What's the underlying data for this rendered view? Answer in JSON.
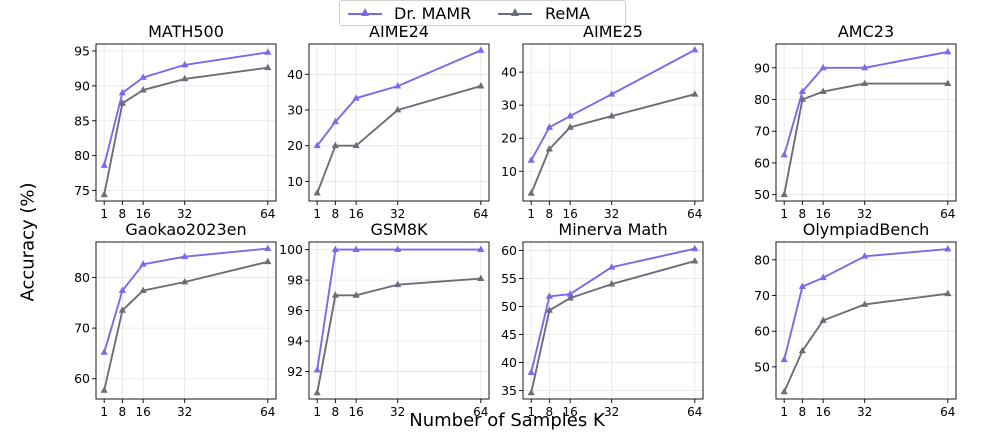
{
  "figure": {
    "ylabel": "Accuracy (%)",
    "xlabel": "Number of Samples K"
  },
  "legend": [
    {
      "name": "Dr. MAMR",
      "color": "#7b68ee"
    },
    {
      "name": "ReMA",
      "color": "#696e78"
    }
  ],
  "chart_data": [
    {
      "type": "line",
      "title": "MATH500",
      "x": [
        1,
        8,
        16,
        32,
        64
      ],
      "xticks": [
        1,
        8,
        16,
        32,
        64
      ],
      "yticks": [
        75,
        80,
        85,
        90,
        95
      ],
      "ylim": [
        73.5,
        96
      ],
      "series": [
        {
          "name": "Dr. MAMR",
          "values": [
            78.6,
            89.0,
            91.2,
            93.0,
            94.8
          ]
        },
        {
          "name": "ReMA",
          "values": [
            74.4,
            87.5,
            89.4,
            91.0,
            92.6
          ]
        }
      ]
    },
    {
      "type": "line",
      "title": "AIME24",
      "x": [
        1,
        8,
        16,
        32,
        64
      ],
      "xticks": [
        1,
        8,
        16,
        32,
        64
      ],
      "yticks": [
        10,
        20,
        30,
        40
      ],
      "ylim": [
        4.5,
        48.5
      ],
      "series": [
        {
          "name": "Dr. MAMR",
          "values": [
            20.0,
            26.7,
            33.3,
            36.7,
            46.7
          ]
        },
        {
          "name": "ReMA",
          "values": [
            6.7,
            20.0,
            20.0,
            30.0,
            36.7
          ]
        }
      ]
    },
    {
      "type": "line",
      "title": "AIME25",
      "x": [
        1,
        8,
        16,
        32,
        64
      ],
      "xticks": [
        1,
        8,
        16,
        32,
        64
      ],
      "yticks": [
        10,
        20,
        30,
        40
      ],
      "ylim": [
        1,
        48.5
      ],
      "series": [
        {
          "name": "Dr. MAMR",
          "values": [
            13.3,
            23.3,
            26.7,
            33.3,
            46.7
          ]
        },
        {
          "name": "ReMA",
          "values": [
            3.3,
            16.7,
            23.3,
            26.7,
            33.3
          ]
        }
      ]
    },
    {
      "type": "line",
      "title": "AMC23",
      "x": [
        1,
        8,
        16,
        32,
        64
      ],
      "xticks": [
        1,
        8,
        16,
        32,
        64
      ],
      "yticks": [
        50,
        60,
        70,
        80,
        90
      ],
      "ylim": [
        48,
        97.5
      ],
      "series": [
        {
          "name": "Dr. MAMR",
          "values": [
            62.5,
            82.5,
            90.0,
            90.0,
            95.0
          ]
        },
        {
          "name": "ReMA",
          "values": [
            50.0,
            80.0,
            82.5,
            85.0,
            85.0
          ]
        }
      ]
    },
    {
      "type": "line",
      "title": "Gaokao2023en",
      "x": [
        1,
        8,
        16,
        32,
        64
      ],
      "xticks": [
        1,
        8,
        16,
        32,
        64
      ],
      "yticks": [
        60,
        70,
        80
      ],
      "ylim": [
        56,
        87
      ],
      "series": [
        {
          "name": "Dr. MAMR",
          "values": [
            65.2,
            77.4,
            82.6,
            84.1,
            85.7
          ]
        },
        {
          "name": "ReMA",
          "values": [
            57.7,
            73.5,
            77.4,
            79.1,
            83.1
          ]
        }
      ]
    },
    {
      "type": "line",
      "title": "GSM8K",
      "x": [
        1,
        8,
        16,
        32,
        64
      ],
      "xticks": [
        1,
        8,
        16,
        32,
        64
      ],
      "yticks": [
        92,
        94,
        96,
        98,
        100
      ],
      "ylim": [
        90.2,
        100.5
      ],
      "series": [
        {
          "name": "Dr. MAMR",
          "values": [
            92.1,
            100.0,
            100.0,
            100.0,
            100.0
          ]
        },
        {
          "name": "ReMA",
          "values": [
            90.6,
            97.0,
            97.0,
            97.7,
            98.1
          ]
        }
      ]
    },
    {
      "type": "line",
      "title": "Minerva Math",
      "x": [
        1,
        8,
        16,
        32,
        64
      ],
      "xticks": [
        1,
        8,
        16,
        32,
        64
      ],
      "yticks": [
        35,
        40,
        45,
        50,
        55,
        60
      ],
      "ylim": [
        33.5,
        61.5
      ],
      "series": [
        {
          "name": "Dr. MAMR",
          "values": [
            38.2,
            51.8,
            52.2,
            57.0,
            60.3
          ]
        },
        {
          "name": "ReMA",
          "values": [
            34.6,
            49.3,
            51.5,
            54.0,
            58.1
          ]
        }
      ]
    },
    {
      "type": "line",
      "title": "OlympiadBench",
      "x": [
        1,
        8,
        16,
        32,
        64
      ],
      "xticks": [
        1,
        8,
        16,
        32,
        64
      ],
      "yticks": [
        50,
        60,
        70,
        80
      ],
      "ylim": [
        41,
        85
      ],
      "series": [
        {
          "name": "Dr. MAMR",
          "values": [
            52.0,
            72.5,
            75.0,
            81.0,
            83.0
          ]
        },
        {
          "name": "ReMA",
          "values": [
            43.0,
            54.5,
            63.0,
            67.5,
            70.5
          ]
        }
      ]
    }
  ]
}
